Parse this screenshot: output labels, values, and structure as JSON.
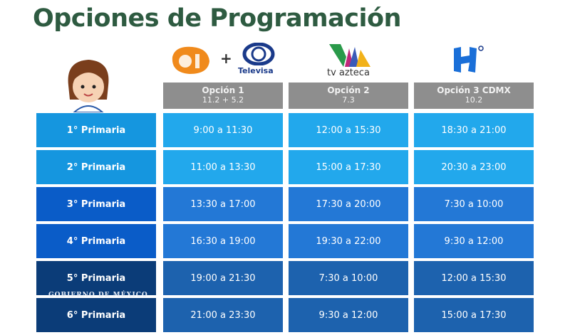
{
  "title": "Opciones de Programación",
  "logos": {
    "televisa": "Televisa",
    "tvazteca": "tv azteca",
    "plus": "+"
  },
  "columns": [
    {
      "label": "Opción 1",
      "channels": "11.2  +  5.2"
    },
    {
      "label": "Opción 2",
      "channels": "7.3"
    },
    {
      "label": "Opción 3 CDMX",
      "channels": "10.2"
    }
  ],
  "rows": [
    {
      "grade": "1° Primaria",
      "times": [
        "9:00 a 11:30",
        "12:00 a 15:30",
        "18:30 a 21:00"
      ]
    },
    {
      "grade": "2° Primaria",
      "times": [
        "11:00 a 13:30",
        "15:00 a 17:30",
        "20:30 a 23:00"
      ]
    },
    {
      "grade": "3° Primaria",
      "times": [
        "13:30 a 17:00",
        "17:30 a 20:00",
        "7:30 a 10:00"
      ]
    },
    {
      "grade": "4° Primaria",
      "times": [
        "16:30 a 19:00",
        "19:30 a 22:00",
        "9:30 a 12:00"
      ]
    },
    {
      "grade": "5° Primaria",
      "times": [
        "19:00 a 21:30",
        "7:30 a 10:00",
        "12:00 a 15:30"
      ]
    },
    {
      "grade": "6° Primaria",
      "times": [
        "21:00 a 23:30",
        "9:30 a 12:00",
        "15:00 a 17:30"
      ]
    }
  ],
  "watermark": "GOBIERNO DE MÉXICO",
  "colors": {
    "title": "#2e5b41",
    "header": "#8e8e8e",
    "label": [
      "#1596df",
      "#1596df",
      "#0a5cc8",
      "#0a5cc8",
      "#0b3c78",
      "#0b3c78"
    ],
    "cell": [
      "#22a8ec",
      "#22a8ec",
      "#2378d6",
      "#2378d6",
      "#1d62ae",
      "#1d62ae"
    ]
  }
}
